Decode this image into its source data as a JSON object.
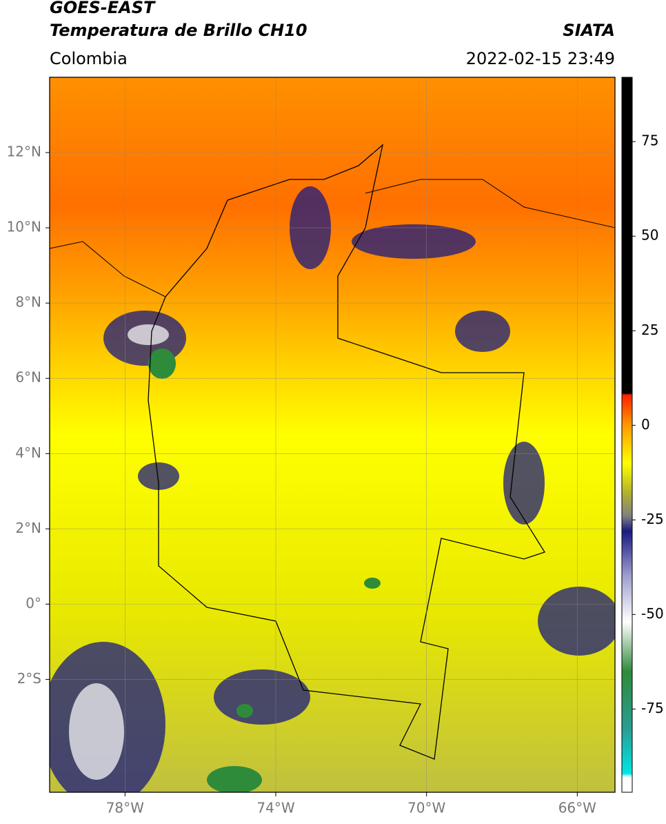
{
  "header": {
    "title_line1": "GOES-EAST",
    "title_line2": "Temperatura de Brillo CH10",
    "source": "SIATA",
    "region": "Colombia",
    "datetime": "2022-02-15 23:49"
  },
  "map": {
    "lonlim": [
      -80,
      -65
    ],
    "latlim": [
      -5,
      14
    ],
    "lonticks": [
      {
        "value": -78,
        "label": "78°W"
      },
      {
        "value": -74,
        "label": "74°W"
      },
      {
        "value": -70,
        "label": "70°W"
      },
      {
        "value": -66,
        "label": "66°W"
      }
    ],
    "latticks": [
      {
        "value": 12,
        "label": "12°N"
      },
      {
        "value": 10,
        "label": "10°N"
      },
      {
        "value": 8,
        "label": "8°N"
      },
      {
        "value": 6,
        "label": "6°N"
      },
      {
        "value": 4,
        "label": "4°N"
      },
      {
        "value": 2,
        "label": "2°N"
      },
      {
        "value": 0,
        "label": "0°"
      },
      {
        "value": -2,
        "label": "2°S"
      }
    ],
    "grid": true
  },
  "colorbar": {
    "lim": [
      -97,
      92
    ],
    "ticks": [
      75,
      50,
      25,
      0,
      -25,
      -50,
      -75
    ],
    "colormap": [
      {
        "value": -97,
        "color": "#ffffff"
      },
      {
        "value": -93,
        "color": "#ffffff"
      },
      {
        "value": -92,
        "color": "#00e5e5"
      },
      {
        "value": -80,
        "color": "#2a9d8f"
      },
      {
        "value": -65,
        "color": "#2e8b3a"
      },
      {
        "value": -52,
        "color": "#ffffff"
      },
      {
        "value": -40,
        "color": "#a0a0d0"
      },
      {
        "value": -28,
        "color": "#1a1a80"
      },
      {
        "value": -24,
        "color": "#808080"
      },
      {
        "value": -18,
        "color": "#b0b030"
      },
      {
        "value": -10,
        "color": "#ffff00"
      },
      {
        "value": 0,
        "color": "#ff9900"
      },
      {
        "value": 8,
        "color": "#ff2000"
      },
      {
        "value": 8.5,
        "color": "#000000"
      },
      {
        "value": 92,
        "color": "#000000"
      }
    ]
  }
}
